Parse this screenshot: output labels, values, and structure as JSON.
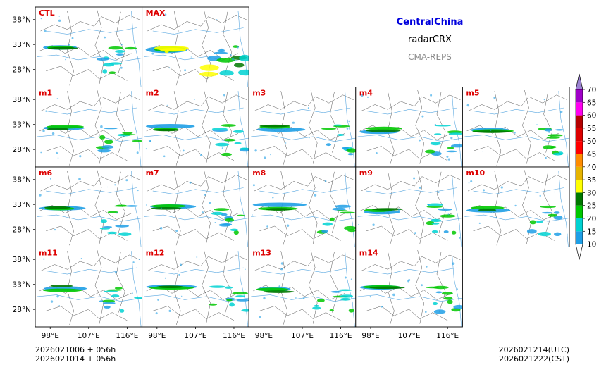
{
  "header": {
    "region": "CentralChina",
    "variable": "radarCRX",
    "model": "CMA-REPS"
  },
  "footer": {
    "init_line1": "2026021006  +  056h",
    "init_line2": "2026021014  +  056h",
    "valid_utc": "2026021214(UTC)",
    "valid_cst": "2026021222(CST)"
  },
  "chart_data": {
    "type": "heatmap",
    "title": "CentralChina radarCRX CMA-REPS",
    "panels": [
      {
        "label": "CTL",
        "row": 0,
        "col": 0
      },
      {
        "label": "MAX",
        "row": 0,
        "col": 1
      },
      {
        "label": "m1",
        "row": 1,
        "col": 0
      },
      {
        "label": "m2",
        "row": 1,
        "col": 1
      },
      {
        "label": "m3",
        "row": 1,
        "col": 2
      },
      {
        "label": "m4",
        "row": 1,
        "col": 3
      },
      {
        "label": "m5",
        "row": 1,
        "col": 4
      },
      {
        "label": "m6",
        "row": 2,
        "col": 0
      },
      {
        "label": "m7",
        "row": 2,
        "col": 1
      },
      {
        "label": "m8",
        "row": 2,
        "col": 2
      },
      {
        "label": "m9",
        "row": 2,
        "col": 3
      },
      {
        "label": "m10",
        "row": 2,
        "col": 4
      },
      {
        "label": "m11",
        "row": 3,
        "col": 0
      },
      {
        "label": "m12",
        "row": 3,
        "col": 1
      },
      {
        "label": "m13",
        "row": 3,
        "col": 2
      },
      {
        "label": "m14",
        "row": 3,
        "col": 3
      }
    ],
    "y_ticks": [
      "38°N",
      "33°N",
      "28°N"
    ],
    "y_tick_values": [
      38,
      33,
      28
    ],
    "x_ticks": [
      "98°E",
      "107°E",
      "116°E"
    ],
    "x_tick_values": [
      98,
      107,
      116
    ],
    "xlim": [
      94.5,
      119.5
    ],
    "ylim": [
      24.5,
      40.5
    ],
    "colorbar": {
      "levels": [
        10,
        15,
        20,
        25,
        30,
        35,
        40,
        45,
        50,
        55,
        60,
        65,
        70
      ],
      "labels": [
        "10",
        "15",
        "20",
        "25",
        "30",
        "35",
        "40",
        "45",
        "50",
        "55",
        "60",
        "65",
        "70"
      ],
      "colors": [
        "#1e9fe6",
        "#00d2d2",
        "#00c800",
        "#007800",
        "#ffff00",
        "#e6b400",
        "#ff8c00",
        "#ff0000",
        "#dc0000",
        "#b40000",
        "#ff00f0",
        "#a000c8",
        "#9b82d2"
      ],
      "under_color": "#ffffff",
      "over_color": "#9b82d2"
    }
  }
}
